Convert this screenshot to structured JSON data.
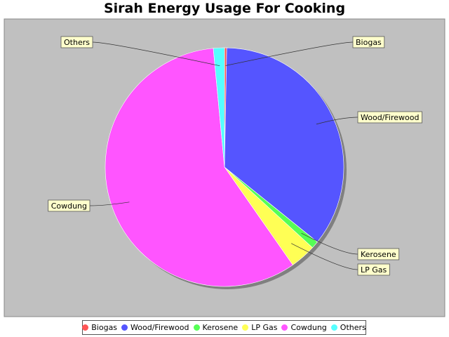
{
  "chart_data": {
    "type": "pie",
    "title": "Sirah Energy Usage For Cooking",
    "categories": [
      "Biogas",
      "Wood/Firewood",
      "Kerosene",
      "LP Gas",
      "Cowdung",
      "Others"
    ],
    "values": [
      0.3,
      35.5,
      1.0,
      3.5,
      58.2,
      1.5
    ],
    "colors": [
      "#ff5555",
      "#5555ff",
      "#55ff55",
      "#ffff55",
      "#ff55ff",
      "#55ffff"
    ],
    "legend_position": "bottom"
  }
}
